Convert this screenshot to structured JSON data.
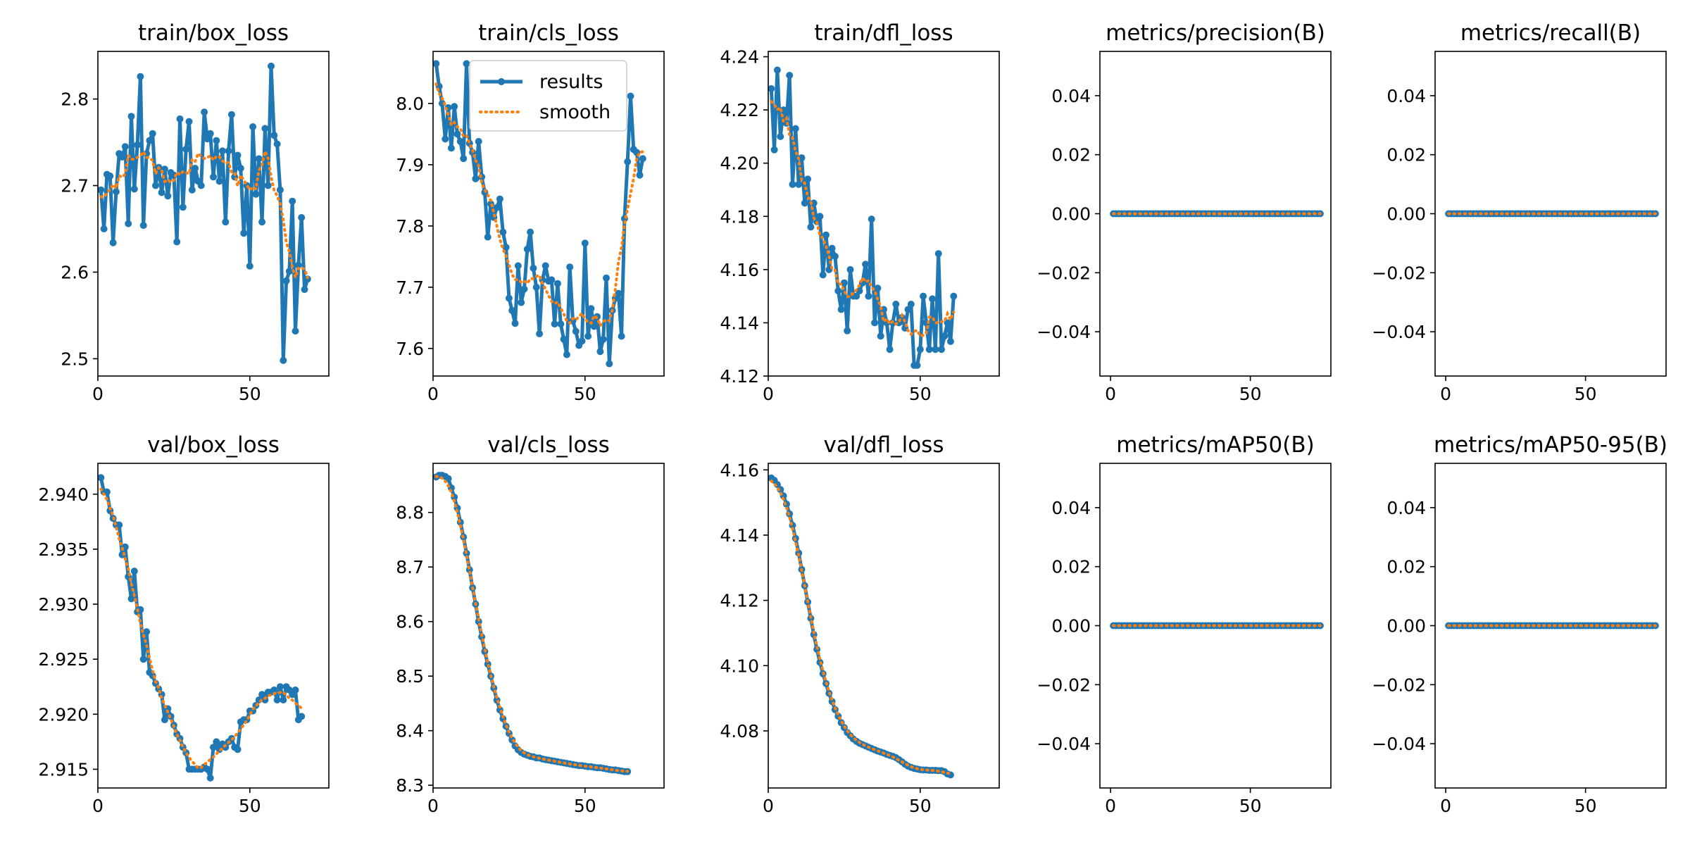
{
  "colors": {
    "results": "#1f77b4",
    "smooth": "#ff7f0e"
  },
  "legend": {
    "placement": "upper-center",
    "entries": [
      "results",
      "smooth"
    ]
  },
  "chart_data": [
    {
      "title": "train/box_loss",
      "type": "line",
      "xlim": [
        0,
        76
      ],
      "xticks": [
        0,
        50
      ],
      "ylim": [
        2.48,
        2.855
      ],
      "yticks": [
        2.5,
        2.6,
        2.7,
        2.8
      ],
      "ytick_labels": [
        "2.5",
        "2.6",
        "2.7",
        "2.8"
      ],
      "series": [
        {
          "name": "results",
          "values": [
            2.695,
            2.65,
            2.713,
            2.711,
            2.634,
            2.693,
            2.737,
            2.733,
            2.745,
            2.656,
            2.78,
            2.696,
            2.747,
            2.826,
            2.654,
            2.737,
            2.752,
            2.76,
            2.7,
            2.721,
            2.692,
            2.719,
            2.688,
            2.715,
            2.712,
            2.635,
            2.777,
            2.675,
            2.742,
            2.774,
            2.695,
            2.72,
            2.705,
            2.7,
            2.785,
            2.754,
            2.76,
            2.71,
            2.752,
            2.705,
            2.74,
            2.658,
            2.74,
            2.782,
            2.71,
            2.735,
            2.72,
            2.645,
            2.7,
            2.607,
            2.768,
            2.69,
            2.731,
            2.658,
            2.766,
            2.7,
            2.838,
            2.758,
            2.748,
            2.695,
            2.498,
            2.59,
            2.601,
            2.682,
            2.532,
            2.608,
            2.663,
            2.58,
            2.592
          ]
        }
      ]
    },
    {
      "title": "train/cls_loss",
      "type": "line",
      "xlim": [
        0,
        76
      ],
      "xticks": [
        0,
        50
      ],
      "ylim": [
        7.555,
        8.085
      ],
      "yticks": [
        7.6,
        7.7,
        7.8,
        7.9,
        8.0
      ],
      "ytick_labels": [
        "7.6",
        "7.7",
        "7.8",
        "7.9",
        "8.0"
      ],
      "series": [
        {
          "name": "results",
          "values": [
            8.065,
            8.028,
            8.0,
            7.942,
            7.993,
            7.927,
            7.995,
            7.95,
            7.938,
            7.91,
            8.065,
            7.935,
            7.92,
            7.877,
            7.938,
            7.88,
            7.855,
            7.782,
            7.836,
            7.814,
            7.83,
            7.844,
            7.79,
            7.765,
            7.682,
            7.662,
            7.641,
            7.735,
            7.675,
            7.697,
            7.762,
            7.79,
            7.731,
            7.7,
            7.624,
            7.712,
            7.735,
            7.71,
            7.712,
            7.64,
            7.706,
            7.64,
            7.615,
            7.59,
            7.733,
            7.645,
            7.628,
            7.605,
            7.612,
            7.772,
            7.62,
            7.665,
            7.636,
            7.652,
            7.595,
            7.615,
            7.715,
            7.575,
            7.662,
            7.682,
            7.69,
            7.62,
            7.812,
            7.905,
            8.012,
            7.925,
            7.92,
            7.883,
            7.91
          ]
        }
      ]
    },
    {
      "title": "train/dfl_loss",
      "type": "line",
      "xlim": [
        0,
        76
      ],
      "xticks": [
        0,
        50
      ],
      "ylim": [
        4.12,
        4.242
      ],
      "yticks": [
        4.12,
        4.14,
        4.16,
        4.18,
        4.2,
        4.22,
        4.24
      ],
      "ytick_labels": [
        "4.12",
        "4.14",
        "4.16",
        "4.18",
        "4.20",
        "4.22",
        "4.24"
      ],
      "series": [
        {
          "name": "results",
          "values": [
            4.228,
            4.205,
            4.235,
            4.21,
            4.22,
            4.215,
            4.233,
            4.192,
            4.213,
            4.192,
            4.202,
            4.185,
            4.194,
            4.176,
            4.185,
            4.178,
            4.18,
            4.158,
            4.173,
            4.16,
            4.168,
            4.165,
            4.152,
            4.145,
            4.155,
            4.137,
            4.16,
            4.15,
            4.15,
            4.152,
            4.155,
            4.162,
            4.15,
            4.179,
            4.14,
            4.153,
            4.135,
            4.145,
            4.14,
            4.13,
            4.14,
            4.147,
            4.14,
            4.142,
            4.138,
            4.145,
            4.147,
            4.124,
            4.124,
            4.13,
            4.15,
            4.14,
            4.13,
            4.149,
            4.13,
            4.166,
            4.13,
            4.135,
            4.14,
            4.133,
            4.15
          ]
        }
      ]
    },
    {
      "title": "metrics/precision(B)",
      "type": "line",
      "xlim": [
        -3.8,
        78.8
      ],
      "xticks": [
        0,
        50
      ],
      "ylim": [
        -0.055,
        0.055
      ],
      "yticks": [
        -0.04,
        -0.02,
        0.0,
        0.02,
        0.04
      ],
      "ytick_labels": [
        "−0.04",
        "−0.02",
        "0.00",
        "0.02",
        "0.04"
      ],
      "series": [
        {
          "name": "results",
          "values": [
            0,
            0,
            0,
            0,
            0,
            0,
            0,
            0,
            0,
            0,
            0,
            0,
            0,
            0,
            0,
            0,
            0,
            0,
            0,
            0,
            0,
            0,
            0,
            0,
            0,
            0,
            0,
            0,
            0,
            0,
            0,
            0,
            0,
            0,
            0,
            0,
            0,
            0,
            0,
            0,
            0,
            0,
            0,
            0,
            0,
            0,
            0,
            0,
            0,
            0,
            0,
            0,
            0,
            0,
            0,
            0,
            0,
            0,
            0,
            0,
            0,
            0,
            0,
            0,
            0,
            0,
            0,
            0,
            0,
            0,
            0,
            0,
            0,
            0,
            0
          ]
        }
      ]
    },
    {
      "title": "metrics/recall(B)",
      "type": "line",
      "xlim": [
        -3.8,
        78.8
      ],
      "xticks": [
        0,
        50
      ],
      "ylim": [
        -0.055,
        0.055
      ],
      "yticks": [
        -0.04,
        -0.02,
        0.0,
        0.02,
        0.04
      ],
      "ytick_labels": [
        "−0.04",
        "−0.02",
        "0.00",
        "0.02",
        "0.04"
      ],
      "series": [
        {
          "name": "results",
          "values": [
            0,
            0,
            0,
            0,
            0,
            0,
            0,
            0,
            0,
            0,
            0,
            0,
            0,
            0,
            0,
            0,
            0,
            0,
            0,
            0,
            0,
            0,
            0,
            0,
            0,
            0,
            0,
            0,
            0,
            0,
            0,
            0,
            0,
            0,
            0,
            0,
            0,
            0,
            0,
            0,
            0,
            0,
            0,
            0,
            0,
            0,
            0,
            0,
            0,
            0,
            0,
            0,
            0,
            0,
            0,
            0,
            0,
            0,
            0,
            0,
            0,
            0,
            0,
            0,
            0,
            0,
            0,
            0,
            0,
            0,
            0,
            0,
            0,
            0,
            0
          ]
        }
      ]
    },
    {
      "title": "val/box_loss",
      "type": "line",
      "xlim": [
        0,
        76
      ],
      "xticks": [
        0,
        50
      ],
      "ylim": [
        2.9133,
        2.9428
      ],
      "yticks": [
        2.915,
        2.92,
        2.925,
        2.93,
        2.935,
        2.94
      ],
      "ytick_labels": [
        "2.915",
        "2.920",
        "2.925",
        "2.930",
        "2.935",
        "2.940"
      ],
      "series": [
        {
          "name": "results",
          "values": [
            2.9415,
            2.9402,
            2.9402,
            2.9385,
            2.9378,
            2.9372,
            2.9372,
            2.9345,
            2.9352,
            2.9325,
            2.9305,
            2.933,
            2.9293,
            2.9295,
            2.925,
            2.9275,
            2.9238,
            2.9235,
            2.9228,
            2.9223,
            2.9218,
            2.9195,
            2.9205,
            2.9198,
            2.919,
            2.9182,
            2.9178,
            2.917,
            2.9165,
            2.915,
            2.915,
            2.915,
            2.915,
            2.915,
            2.9152,
            2.915,
            2.9142,
            2.917,
            2.9175,
            2.9168,
            2.9173,
            2.917,
            2.9175,
            2.9178,
            2.917,
            2.9168,
            2.9193,
            2.9195,
            2.9195,
            2.9203,
            2.9203,
            2.9208,
            2.9213,
            2.9218,
            2.9213,
            2.922,
            2.922,
            2.9222,
            2.9213,
            2.9225,
            2.9213,
            2.9225,
            2.9222,
            2.9218,
            2.9222,
            2.9195,
            2.9198
          ]
        }
      ]
    },
    {
      "title": "val/cls_loss",
      "type": "line",
      "xlim": [
        0,
        76
      ],
      "xticks": [
        0,
        50
      ],
      "ylim": [
        8.295,
        8.89
      ],
      "yticks": [
        8.3,
        8.4,
        8.5,
        8.6,
        8.7,
        8.8
      ],
      "ytick_labels": [
        "8.3",
        "8.4",
        "8.5",
        "8.6",
        "8.7",
        "8.8"
      ],
      "series": [
        {
          "name": "results",
          "values": [
            8.865,
            8.868,
            8.868,
            8.866,
            8.862,
            8.845,
            8.828,
            8.808,
            8.782,
            8.755,
            8.725,
            8.695,
            8.662,
            8.632,
            8.6,
            8.572,
            8.545,
            8.522,
            8.5,
            8.478,
            8.456,
            8.438,
            8.422,
            8.408,
            8.395,
            8.383,
            8.372,
            8.365,
            8.36,
            8.357,
            8.355,
            8.353,
            8.352,
            8.35,
            8.35,
            8.348,
            8.347,
            8.346,
            8.345,
            8.344,
            8.343,
            8.342,
            8.341,
            8.34,
            8.339,
            8.338,
            8.337,
            8.336,
            8.336,
            8.335,
            8.334,
            8.334,
            8.333,
            8.332,
            8.332,
            8.331,
            8.33,
            8.329,
            8.328,
            8.328,
            8.327,
            8.326,
            8.325,
            8.325
          ]
        }
      ]
    },
    {
      "title": "val/dfl_loss",
      "type": "line",
      "xlim": [
        0,
        76
      ],
      "xticks": [
        0,
        50
      ],
      "ylim": [
        4.0625,
        4.162
      ],
      "yticks": [
        4.08,
        4.1,
        4.12,
        4.14,
        4.16
      ],
      "ytick_labels": [
        "4.08",
        "4.10",
        "4.12",
        "4.14",
        "4.16"
      ],
      "series": [
        {
          "name": "results",
          "values": [
            4.1575,
            4.1568,
            4.1555,
            4.154,
            4.152,
            4.1495,
            4.1465,
            4.143,
            4.139,
            4.1345,
            4.1295,
            4.1245,
            4.1195,
            4.1145,
            4.1095,
            4.105,
            4.101,
            4.0975,
            4.0945,
            4.0915,
            4.089,
            4.0865,
            4.0845,
            4.0825,
            4.081,
            4.0795,
            4.0785,
            4.0775,
            4.0768,
            4.0762,
            4.0758,
            4.0754,
            4.075,
            4.0746,
            4.0742,
            4.0738,
            4.0735,
            4.0732,
            4.0728,
            4.0725,
            4.0722,
            4.0718,
            4.0712,
            4.0705,
            4.0698,
            4.0692,
            4.0688,
            4.0685,
            4.0683,
            4.0681,
            4.068,
            4.068,
            4.0679,
            4.0679,
            4.0679,
            4.0678,
            4.0678,
            4.0675,
            4.0668,
            4.0665
          ]
        }
      ]
    },
    {
      "title": "metrics/mAP50(B)",
      "type": "line",
      "xlim": [
        -3.8,
        78.8
      ],
      "xticks": [
        0,
        50
      ],
      "ylim": [
        -0.055,
        0.055
      ],
      "yticks": [
        -0.04,
        -0.02,
        0.0,
        0.02,
        0.04
      ],
      "ytick_labels": [
        "−0.04",
        "−0.02",
        "0.00",
        "0.02",
        "0.04"
      ],
      "series": [
        {
          "name": "results",
          "values": [
            0,
            0,
            0,
            0,
            0,
            0,
            0,
            0,
            0,
            0,
            0,
            0,
            0,
            0,
            0,
            0,
            0,
            0,
            0,
            0,
            0,
            0,
            0,
            0,
            0,
            0,
            0,
            0,
            0,
            0,
            0,
            0,
            0,
            0,
            0,
            0,
            0,
            0,
            0,
            0,
            0,
            0,
            0,
            0,
            0,
            0,
            0,
            0,
            0,
            0,
            0,
            0,
            0,
            0,
            0,
            0,
            0,
            0,
            0,
            0,
            0,
            0,
            0,
            0,
            0,
            0,
            0,
            0,
            0,
            0,
            0,
            0,
            0,
            0,
            0
          ]
        }
      ]
    },
    {
      "title": "metrics/mAP50-95(B)",
      "type": "line",
      "xlim": [
        -3.8,
        78.8
      ],
      "xticks": [
        0,
        50
      ],
      "ylim": [
        -0.055,
        0.055
      ],
      "yticks": [
        -0.04,
        -0.02,
        0.0,
        0.02,
        0.04
      ],
      "ytick_labels": [
        "−0.04",
        "−0.02",
        "0.00",
        "0.02",
        "0.04"
      ],
      "series": [
        {
          "name": "results",
          "values": [
            0,
            0,
            0,
            0,
            0,
            0,
            0,
            0,
            0,
            0,
            0,
            0,
            0,
            0,
            0,
            0,
            0,
            0,
            0,
            0,
            0,
            0,
            0,
            0,
            0,
            0,
            0,
            0,
            0,
            0,
            0,
            0,
            0,
            0,
            0,
            0,
            0,
            0,
            0,
            0,
            0,
            0,
            0,
            0,
            0,
            0,
            0,
            0,
            0,
            0,
            0,
            0,
            0,
            0,
            0,
            0,
            0,
            0,
            0,
            0,
            0,
            0,
            0,
            0,
            0,
            0,
            0,
            0,
            0,
            0,
            0,
            0,
            0,
            0,
            0
          ]
        }
      ]
    }
  ]
}
